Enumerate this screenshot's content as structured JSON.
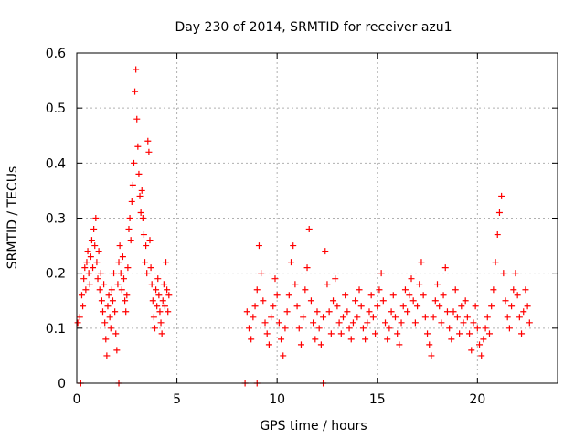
{
  "chart_data": {
    "type": "scatter",
    "title": "Day 230 of 2014, SRMTID for receiver azu1",
    "xlabel": "GPS time / hours",
    "ylabel": "SRMTID / TECUs",
    "xlim": [
      0,
      24
    ],
    "ylim": [
      0,
      0.6
    ],
    "x_ticks": [
      "0",
      "5",
      "10",
      "15",
      "20"
    ],
    "y_ticks": [
      "0",
      "0.1",
      "0.2",
      "0.3",
      "0.4",
      "0.5",
      "0.6"
    ],
    "grid": true,
    "marker": "+",
    "marker_color": "#ff0000",
    "series": [
      {
        "name": "SRMTID",
        "points": [
          [
            0.05,
            0.11
          ],
          [
            0.15,
            0.12
          ],
          [
            0.25,
            0.16
          ],
          [
            0.3,
            0.14
          ],
          [
            0.35,
            0.19
          ],
          [
            0.4,
            0.21
          ],
          [
            0.45,
            0.17
          ],
          [
            0.5,
            0.22
          ],
          [
            0.55,
            0.24
          ],
          [
            0.6,
            0.2
          ],
          [
            0.65,
            0.18
          ],
          [
            0.7,
            0.23
          ],
          [
            0.75,
            0.26
          ],
          [
            0.8,
            0.21
          ],
          [
            0.85,
            0.28
          ],
          [
            0.9,
            0.25
          ],
          [
            0.95,
            0.3
          ],
          [
            1.0,
            0.22
          ],
          [
            1.05,
            0.19
          ],
          [
            1.1,
            0.24
          ],
          [
            1.15,
            0.17
          ],
          [
            1.2,
            0.2
          ],
          [
            1.25,
            0.15
          ],
          [
            1.3,
            0.13
          ],
          [
            1.35,
            0.18
          ],
          [
            1.4,
            0.11
          ],
          [
            1.45,
            0.08
          ],
          [
            1.5,
            0.05
          ],
          [
            1.55,
            0.14
          ],
          [
            1.6,
            0.16
          ],
          [
            1.65,
            0.12
          ],
          [
            1.7,
            0.1
          ],
          [
            1.75,
            0.17
          ],
          [
            1.8,
            0.15
          ],
          [
            1.85,
            0.2
          ],
          [
            1.9,
            0.13
          ],
          [
            1.95,
            0.09
          ],
          [
            2.0,
            0.06
          ],
          [
            2.05,
            0.18
          ],
          [
            2.1,
            0.22
          ],
          [
            2.15,
            0.25
          ],
          [
            2.2,
            0.2
          ],
          [
            2.25,
            0.17
          ],
          [
            2.3,
            0.23
          ],
          [
            2.35,
            0.19
          ],
          [
            2.4,
            0.15
          ],
          [
            2.45,
            0.13
          ],
          [
            2.5,
            0.16
          ],
          [
            2.55,
            0.21
          ],
          [
            2.6,
            0.28
          ],
          [
            2.65,
            0.3
          ],
          [
            2.7,
            0.26
          ],
          [
            2.75,
            0.33
          ],
          [
            2.8,
            0.36
          ],
          [
            2.85,
            0.4
          ],
          [
            2.9,
            0.53
          ],
          [
            2.95,
            0.57
          ],
          [
            3.0,
            0.48
          ],
          [
            3.05,
            0.43
          ],
          [
            3.1,
            0.38
          ],
          [
            3.15,
            0.34
          ],
          [
            3.2,
            0.31
          ],
          [
            3.25,
            0.35
          ],
          [
            3.3,
            0.3
          ],
          [
            3.35,
            0.27
          ],
          [
            3.4,
            0.22
          ],
          [
            3.45,
            0.25
          ],
          [
            3.5,
            0.2
          ],
          [
            3.55,
            0.44
          ],
          [
            3.6,
            0.42
          ],
          [
            3.65,
            0.26
          ],
          [
            3.7,
            0.21
          ],
          [
            3.75,
            0.18
          ],
          [
            3.8,
            0.15
          ],
          [
            3.85,
            0.12
          ],
          [
            3.9,
            0.1
          ],
          [
            3.95,
            0.17
          ],
          [
            4.0,
            0.14
          ],
          [
            4.05,
            0.19
          ],
          [
            4.1,
            0.16
          ],
          [
            4.15,
            0.13
          ],
          [
            4.2,
            0.11
          ],
          [
            4.25,
            0.09
          ],
          [
            4.3,
            0.15
          ],
          [
            4.35,
            0.18
          ],
          [
            4.4,
            0.14
          ],
          [
            4.45,
            0.22
          ],
          [
            4.5,
            0.17
          ],
          [
            4.55,
            0.13
          ],
          [
            4.6,
            0.16
          ],
          [
            8.5,
            0.13
          ],
          [
            8.6,
            0.1
          ],
          [
            8.7,
            0.08
          ],
          [
            8.8,
            0.12
          ],
          [
            8.9,
            0.14
          ],
          [
            9.0,
            0.17
          ],
          [
            9.1,
            0.25
          ],
          [
            9.2,
            0.2
          ],
          [
            9.3,
            0.15
          ],
          [
            9.4,
            0.11
          ],
          [
            9.5,
            0.09
          ],
          [
            9.6,
            0.07
          ],
          [
            9.7,
            0.12
          ],
          [
            9.8,
            0.14
          ],
          [
            9.9,
            0.19
          ],
          [
            10.0,
            0.16
          ],
          [
            10.1,
            0.11
          ],
          [
            10.2,
            0.08
          ],
          [
            10.3,
            0.05
          ],
          [
            10.4,
            0.1
          ],
          [
            10.5,
            0.13
          ],
          [
            10.6,
            0.16
          ],
          [
            10.7,
            0.22
          ],
          [
            10.8,
            0.25
          ],
          [
            10.9,
            0.18
          ],
          [
            11.0,
            0.14
          ],
          [
            11.1,
            0.1
          ],
          [
            11.2,
            0.07
          ],
          [
            11.3,
            0.12
          ],
          [
            11.4,
            0.17
          ],
          [
            11.5,
            0.21
          ],
          [
            11.6,
            0.28
          ],
          [
            11.7,
            0.15
          ],
          [
            11.8,
            0.11
          ],
          [
            11.9,
            0.08
          ],
          [
            12.0,
            0.13
          ],
          [
            12.1,
            0.1
          ],
          [
            12.2,
            0.07
          ],
          [
            12.3,
            0.12
          ],
          [
            12.4,
            0.24
          ],
          [
            12.5,
            0.18
          ],
          [
            12.6,
            0.13
          ],
          [
            12.7,
            0.09
          ],
          [
            12.8,
            0.15
          ],
          [
            12.9,
            0.19
          ],
          [
            13.0,
            0.14
          ],
          [
            13.1,
            0.11
          ],
          [
            13.2,
            0.09
          ],
          [
            13.3,
            0.12
          ],
          [
            13.4,
            0.16
          ],
          [
            13.5,
            0.13
          ],
          [
            13.6,
            0.1
          ],
          [
            13.7,
            0.08
          ],
          [
            13.8,
            0.11
          ],
          [
            13.9,
            0.15
          ],
          [
            14.0,
            0.12
          ],
          [
            14.1,
            0.17
          ],
          [
            14.2,
            0.14
          ],
          [
            14.3,
            0.1
          ],
          [
            14.4,
            0.08
          ],
          [
            14.5,
            0.11
          ],
          [
            14.6,
            0.13
          ],
          [
            14.7,
            0.16
          ],
          [
            14.8,
            0.12
          ],
          [
            14.9,
            0.09
          ],
          [
            15.0,
            0.14
          ],
          [
            15.1,
            0.17
          ],
          [
            15.2,
            0.2
          ],
          [
            15.3,
            0.15
          ],
          [
            15.4,
            0.11
          ],
          [
            15.5,
            0.08
          ],
          [
            15.6,
            0.1
          ],
          [
            15.7,
            0.13
          ],
          [
            15.8,
            0.16
          ],
          [
            15.9,
            0.12
          ],
          [
            16.0,
            0.09
          ],
          [
            16.1,
            0.07
          ],
          [
            16.2,
            0.11
          ],
          [
            16.3,
            0.14
          ],
          [
            16.4,
            0.17
          ],
          [
            16.5,
            0.13
          ],
          [
            16.6,
            0.16
          ],
          [
            16.7,
            0.19
          ],
          [
            16.8,
            0.15
          ],
          [
            16.9,
            0.11
          ],
          [
            17.0,
            0.14
          ],
          [
            17.1,
            0.18
          ],
          [
            17.2,
            0.22
          ],
          [
            17.3,
            0.16
          ],
          [
            17.4,
            0.12
          ],
          [
            17.5,
            0.09
          ],
          [
            17.6,
            0.07
          ],
          [
            17.7,
            0.05
          ],
          [
            17.8,
            0.12
          ],
          [
            17.9,
            0.15
          ],
          [
            18.0,
            0.18
          ],
          [
            18.1,
            0.14
          ],
          [
            18.2,
            0.11
          ],
          [
            18.3,
            0.16
          ],
          [
            18.4,
            0.21
          ],
          [
            18.5,
            0.13
          ],
          [
            18.6,
            0.1
          ],
          [
            18.7,
            0.08
          ],
          [
            18.8,
            0.13
          ],
          [
            18.9,
            0.17
          ],
          [
            19.0,
            0.12
          ],
          [
            19.1,
            0.09
          ],
          [
            19.2,
            0.14
          ],
          [
            19.3,
            0.11
          ],
          [
            19.4,
            0.15
          ],
          [
            19.5,
            0.12
          ],
          [
            19.6,
            0.09
          ],
          [
            19.7,
            0.06
          ],
          [
            19.8,
            0.11
          ],
          [
            19.9,
            0.14
          ],
          [
            20.0,
            0.1
          ],
          [
            20.1,
            0.07
          ],
          [
            20.2,
            0.05
          ],
          [
            20.3,
            0.08
          ],
          [
            20.4,
            0.1
          ],
          [
            20.5,
            0.12
          ],
          [
            20.6,
            0.09
          ],
          [
            20.7,
            0.14
          ],
          [
            20.8,
            0.17
          ],
          [
            20.9,
            0.22
          ],
          [
            21.0,
            0.27
          ],
          [
            21.1,
            0.31
          ],
          [
            21.2,
            0.34
          ],
          [
            21.3,
            0.2
          ],
          [
            21.4,
            0.15
          ],
          [
            21.5,
            0.12
          ],
          [
            21.6,
            0.1
          ],
          [
            21.7,
            0.14
          ],
          [
            21.8,
            0.17
          ],
          [
            21.9,
            0.2
          ],
          [
            22.0,
            0.16
          ],
          [
            22.1,
            0.12
          ],
          [
            22.2,
            0.09
          ],
          [
            22.3,
            0.13
          ],
          [
            22.4,
            0.17
          ],
          [
            22.5,
            0.14
          ],
          [
            22.6,
            0.11
          ],
          [
            0.2,
            0.0
          ],
          [
            2.1,
            0.0
          ],
          [
            8.4,
            0.0
          ],
          [
            9.0,
            0.0
          ],
          [
            12.3,
            0.0
          ]
        ]
      }
    ]
  }
}
